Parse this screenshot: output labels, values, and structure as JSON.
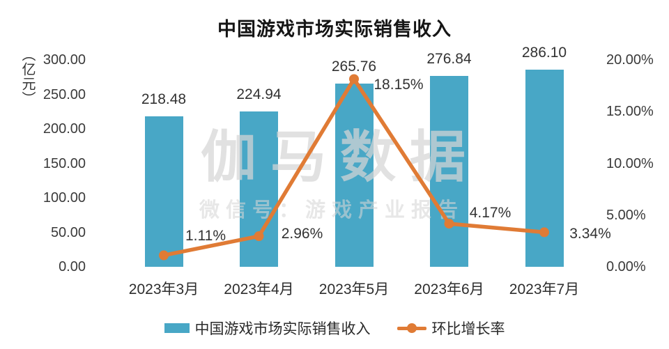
{
  "title": "中国游戏市场实际销售收入",
  "watermark": {
    "line1": "伽马数据",
    "line2": "微信号：游戏产业报告"
  },
  "chart_data": {
    "type": "combo",
    "title": "中国游戏市场实际销售收入",
    "categories": [
      "2023年3月",
      "2023年4月",
      "2023年5月",
      "2023年6月",
      "2023年7月"
    ],
    "series": [
      {
        "name": "中国游戏市场实际销售收入",
        "type": "bar",
        "axis": "left",
        "color": "#48A7C6",
        "values": [
          218.48,
          224.94,
          265.76,
          276.84,
          286.1
        ],
        "labels": [
          "218.48",
          "224.94",
          "265.76",
          "276.84",
          "286.10"
        ]
      },
      {
        "name": "环比增长率",
        "type": "line",
        "axis": "right",
        "color": "#E07B35",
        "values": [
          1.11,
          2.96,
          18.15,
          4.17,
          3.34
        ],
        "labels": [
          "1.11%",
          "2.96%",
          "18.15%",
          "4.17%",
          "3.34%"
        ]
      }
    ],
    "left_axis": {
      "unit": "（亿元）",
      "min": 0,
      "max": 300,
      "ticks": [
        {
          "label": "300.00",
          "value": 300
        },
        {
          "label": "250.00",
          "value": 250
        },
        {
          "label": "200.00",
          "value": 200
        },
        {
          "label": "150.00",
          "value": 150
        },
        {
          "label": "100.00",
          "value": 100
        },
        {
          "label": "50.00",
          "value": 50
        },
        {
          "label": "0.00",
          "value": 0
        }
      ]
    },
    "right_axis": {
      "min": 0,
      "max": 20,
      "ticks": [
        {
          "label": "20.00%",
          "value": 20
        },
        {
          "label": "15.00%",
          "value": 15
        },
        {
          "label": "10.00%",
          "value": 10
        },
        {
          "label": "5.00%",
          "value": 5
        },
        {
          "label": "0.00%",
          "value": 0
        }
      ]
    },
    "legend_position": "bottom",
    "grid": false
  }
}
